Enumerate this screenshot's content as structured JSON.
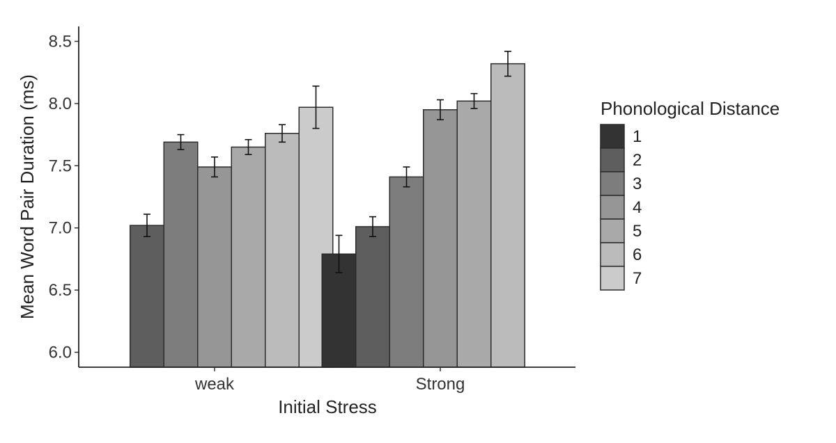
{
  "chart_data": {
    "type": "bar",
    "xlabel": "Initial Stress",
    "ylabel": "Mean Word Pair Duration (ms)",
    "ylim": [
      5.88,
      8.62
    ],
    "yticks": [
      "6.0",
      "6.5",
      "7.0",
      "7.5",
      "8.0",
      "8.5"
    ],
    "grid": false,
    "legend": {
      "title": "Phonological Distance",
      "placement": "right",
      "entries": [
        "1",
        "2",
        "3",
        "4",
        "5",
        "6",
        "7"
      ]
    },
    "categories": [
      "weak",
      "Strong"
    ],
    "series": [
      {
        "name": "1",
        "color": "#333333",
        "values": [
          null,
          6.79
        ],
        "err": [
          null,
          0.15
        ]
      },
      {
        "name": "2",
        "color": "#5e5e5e",
        "values": [
          7.02,
          7.01
        ],
        "err": [
          0.09,
          0.08
        ]
      },
      {
        "name": "3",
        "color": "#7d7d7d",
        "values": [
          7.69,
          7.41
        ],
        "err": [
          0.06,
          0.08
        ]
      },
      {
        "name": "4",
        "color": "#969696",
        "values": [
          7.49,
          7.95
        ],
        "err": [
          0.08,
          0.08
        ]
      },
      {
        "name": "5",
        "color": "#a9a9a9",
        "values": [
          7.65,
          8.02
        ],
        "err": [
          0.06,
          0.06
        ]
      },
      {
        "name": "6",
        "color": "#bbbbbb",
        "values": [
          7.76,
          8.32
        ],
        "err": [
          0.07,
          0.1
        ]
      },
      {
        "name": "7",
        "color": "#cbcbcb",
        "values": [
          7.97,
          null
        ],
        "err": [
          0.17,
          null
        ]
      }
    ]
  }
}
